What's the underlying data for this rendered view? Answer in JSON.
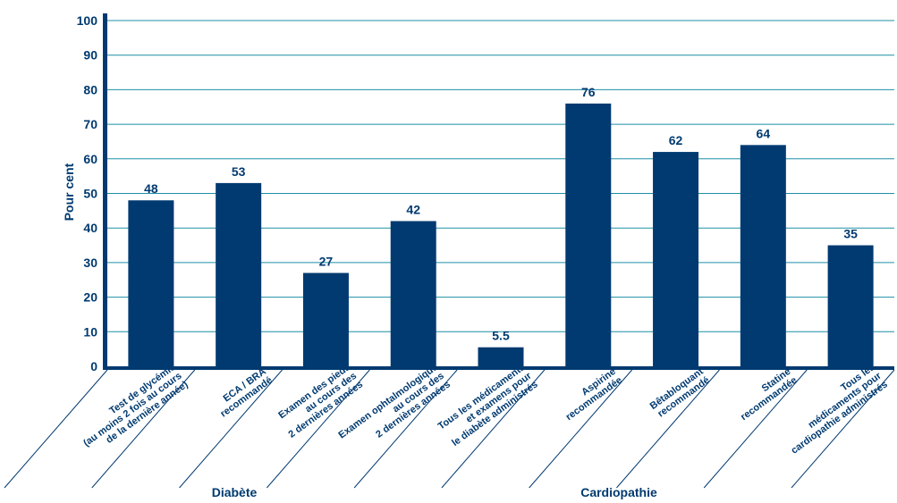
{
  "chart_data": {
    "type": "bar",
    "ylabel": "Pour cent",
    "ylim": [
      0,
      100
    ],
    "yticks": [
      "0",
      "10",
      "20",
      "30",
      "40",
      "50",
      "60",
      "70",
      "80",
      "90",
      "100"
    ],
    "grid": true,
    "colors": {
      "bar": "#003a70",
      "grid": "#1f8fa6",
      "text": "#003a70"
    },
    "categories": [
      [
        "Test de glycémie",
        "(au moins 2 fois au cours",
        "de la dernière année)"
      ],
      [
        "ECA / BRA",
        "recommandé"
      ],
      [
        "Examen des pieds",
        "au cours des",
        "2 dernières années"
      ],
      [
        "Examen ophtalmologique",
        "au cours des",
        "2 dernières années"
      ],
      [
        "Tous les médicaments",
        "et examens pour",
        "le diabète administrés"
      ],
      [
        "Aspirine",
        "recommandée"
      ],
      [
        "Bêtabloquant",
        "recommandé"
      ],
      [
        "Statine",
        "recommandée"
      ],
      [
        "Tous les",
        "médicaments pour",
        "cardiopathie administrés"
      ]
    ],
    "values": [
      48,
      53,
      27,
      42,
      5.5,
      76,
      62,
      64,
      35
    ],
    "value_labels": [
      "48",
      "53",
      "27",
      "42",
      "5.5",
      "76",
      "62",
      "64",
      "35"
    ],
    "groups": [
      {
        "name": "Diabète",
        "categories": [
          0,
          1,
          2,
          3,
          4
        ]
      },
      {
        "name": "Cardiopathie",
        "categories": [
          5,
          6,
          7,
          8
        ]
      }
    ]
  }
}
